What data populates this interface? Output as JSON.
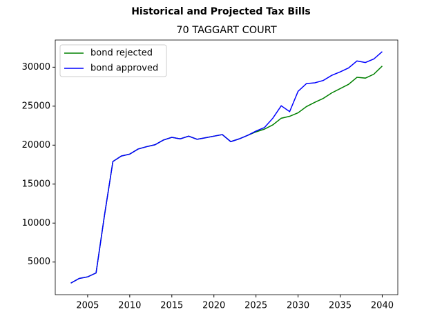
{
  "chart_data": {
    "type": "line",
    "title": "Historical and Projected Tax Bills",
    "subtitle": "70 TAGGART COURT",
    "x": [
      2003,
      2004,
      2005,
      2006,
      2007,
      2008,
      2009,
      2010,
      2011,
      2012,
      2013,
      2014,
      2015,
      2016,
      2017,
      2018,
      2019,
      2020,
      2021,
      2022,
      2023,
      2024,
      2025,
      2026,
      2027,
      2028,
      2029,
      2030,
      2031,
      2032,
      2033,
      2034,
      2035,
      2036,
      2037,
      2038,
      2039,
      2040
    ],
    "series": [
      {
        "name": "bond rejected",
        "color": "#008000",
        "values": [
          2300,
          2900,
          3100,
          3600,
          11000,
          17900,
          18600,
          18850,
          19500,
          19800,
          20050,
          20650,
          21000,
          20800,
          21150,
          20750,
          20950,
          21150,
          21350,
          20450,
          20800,
          21250,
          21700,
          22050,
          22600,
          23450,
          23700,
          24150,
          24950,
          25500,
          26000,
          26700,
          27250,
          27800,
          28700,
          28600,
          29100,
          30150
        ]
      },
      {
        "name": "bond approved",
        "color": "#0000ff",
        "values": [
          2300,
          2900,
          3100,
          3600,
          11000,
          17900,
          18600,
          18850,
          19500,
          19800,
          20050,
          20650,
          21000,
          20800,
          21150,
          20750,
          20950,
          21150,
          21350,
          20450,
          20800,
          21250,
          21800,
          22250,
          23450,
          25050,
          24300,
          26900,
          27900,
          28000,
          28300,
          28950,
          29400,
          29900,
          30800,
          30600,
          31050,
          32000
        ]
      }
    ],
    "xlim": [
      2001.15,
      2041.85
    ],
    "xticks": [
      2005,
      2010,
      2015,
      2020,
      2025,
      2030,
      2035,
      2040
    ],
    "ylim": [
      815,
      33485
    ],
    "yticks": [
      5000,
      10000,
      15000,
      20000,
      25000,
      30000
    ],
    "legend": "upper left"
  }
}
